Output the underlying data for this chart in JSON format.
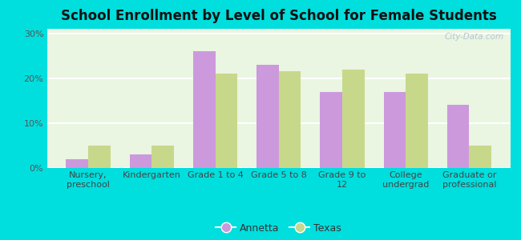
{
  "title": "School Enrollment by Level of School for Female Students",
  "categories": [
    "Nursery,\npreschool",
    "Kindergarten",
    "Grade 1 to 4",
    "Grade 5 to 8",
    "Grade 9 to\n12",
    "College\nundergrad",
    "Graduate or\nprofessional"
  ],
  "annetta": [
    2.0,
    3.0,
    26.0,
    23.0,
    17.0,
    17.0,
    14.0
  ],
  "texas": [
    5.0,
    5.0,
    21.0,
    21.5,
    22.0,
    21.0,
    5.0
  ],
  "annetta_color": "#cc99dd",
  "texas_color": "#c8d88a",
  "background_color": "#00dede",
  "plot_bg_color": "#eaf5e2",
  "ylabel_ticks": [
    "0%",
    "10%",
    "20%",
    "30%"
  ],
  "yticks": [
    0,
    10,
    20,
    30
  ],
  "ylim": [
    0,
    31
  ],
  "legend_labels": [
    "Annetta",
    "Texas"
  ],
  "bar_width": 0.35,
  "title_fontsize": 12,
  "tick_fontsize": 8,
  "legend_fontsize": 9,
  "watermark_text": "City-Data.com"
}
